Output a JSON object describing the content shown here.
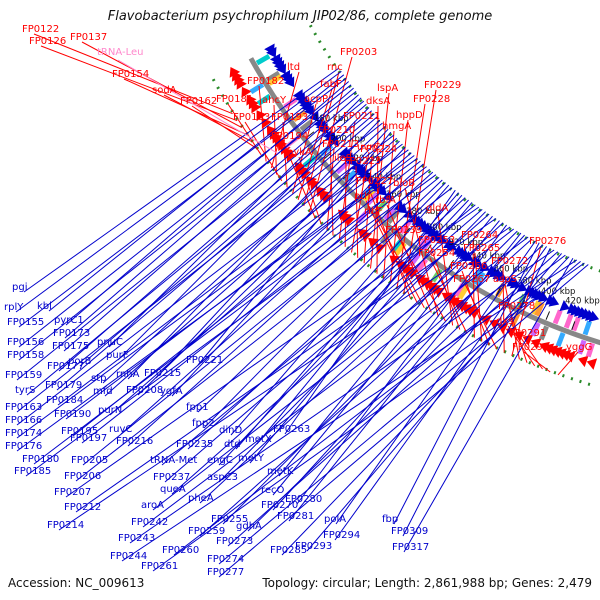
{
  "title": "Flavobacterium psychrophilum JIP02/86, complete genome",
  "accession": "Accession: NC_009613",
  "summary": "Topology: circular; Length: 2,861,988 bp; Genes: 2,479",
  "colors": {
    "forward": "#ff0000",
    "reverse": "#0000cc",
    "rna": "#ff88cc",
    "backbone": "#888888",
    "dots": "#2a8a2a",
    "tick": "#111111"
  },
  "kbp_ticks": [
    "180 kbp",
    "200 kbp",
    "220 kbp",
    "240 kbp",
    "260 kbp",
    "280 kbp",
    "300 kbp",
    "320 kbp",
    "340 kbp",
    "360 kbp",
    "380 kbp",
    "400 kbp",
    "420 kbp"
  ],
  "red_labels": [
    "FP0122",
    "FP0126",
    "FP0137",
    "FP0154",
    "sodA",
    "FP0162",
    "FP0181",
    "FP0182",
    "ltd",
    "ahcY",
    "FP0183",
    "FP0193",
    "acpP",
    "fabF",
    "rnc",
    "FP0203",
    "FP0194",
    "pykA",
    "FP0213",
    "FP0210",
    "FP0211",
    "ileS",
    "uvrC",
    "FP0223",
    "FP0224",
    "lspA",
    "dksA",
    "hmgA",
    "hppD",
    "FP0228",
    "FP0229",
    "FP0227",
    "pth",
    "ribF",
    "rbfA",
    "bioB",
    "FP0239",
    "gldA",
    "FP0253",
    "FP0254",
    "FP0264",
    "FP0265",
    "FP0266",
    "FP0267",
    "FP0272",
    "FP0276",
    "aspS",
    "FP0278",
    "dxs",
    "FP0291",
    "FP0292",
    "yggG"
  ],
  "pink_labels": [
    "tRNA-Leu"
  ],
  "blue_labels": [
    "pgi",
    "rplY",
    "kbl",
    "FP0155",
    "pyrC1",
    "FP0156",
    "FP0173",
    "FP0158",
    "FP0175",
    "pnuC",
    "FP0159",
    "FP0177",
    "purF",
    "tyrS",
    "porB",
    "FP0179",
    "rnhA",
    "FP0163",
    "stp",
    "FP0215",
    "FP0221",
    "FP0166",
    "mfd",
    "FP0208",
    "FP0184",
    "ygfA",
    "FP0174",
    "purN",
    "FP0190",
    "FP0176",
    "FP0195",
    "ruvC",
    "FP0180",
    "FP0197",
    "FP0216",
    "FP0185",
    "FP0205",
    "fpp1",
    "fpp2",
    "dinD",
    "FP0206",
    "FP0263",
    "dtd",
    "metX",
    "FP0235",
    "engC",
    "metY",
    "tRNA-Met",
    "FP0207",
    "FP0237",
    "aspC3",
    "queA",
    "metK",
    "FP0212",
    "recO",
    "pheA",
    "FP0280",
    "FP0214",
    "aroA",
    "FP0255",
    "FP0281",
    "FP0270",
    "FP0242",
    "FP0259",
    "polA",
    "fbp",
    "gdhA",
    "FP0294",
    "FP0309",
    "FP0243",
    "FP0273",
    "FP0293",
    "FP0260",
    "FP0285",
    "FP0317",
    "FP0244",
    "FP0274",
    "FP0261",
    "FP0277"
  ]
}
